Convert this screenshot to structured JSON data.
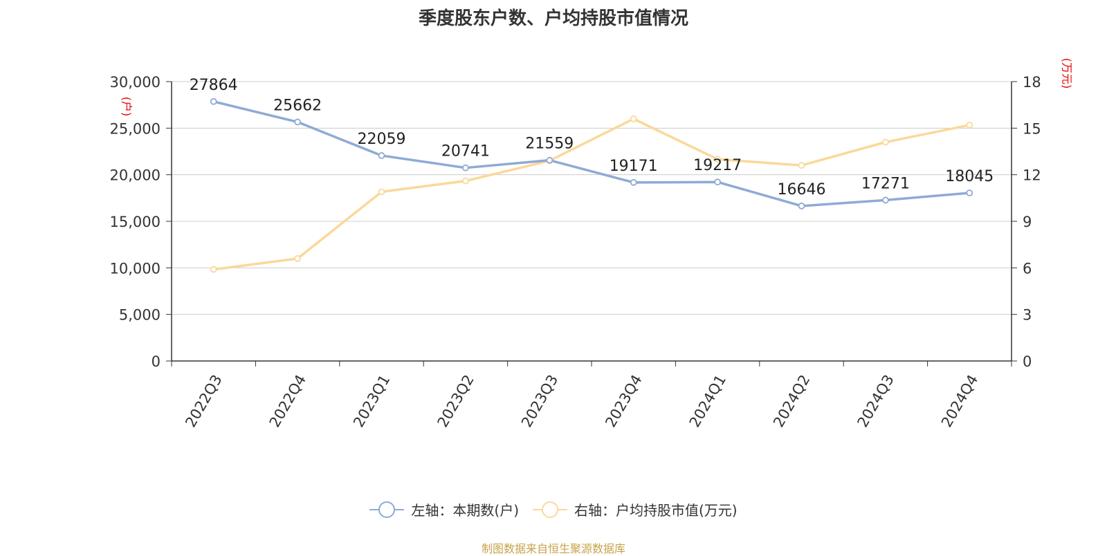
{
  "chart_data": {
    "type": "line",
    "title": "季度股东户数、户均持股市值情况",
    "categories": [
      "2022Q3",
      "2022Q4",
      "2023Q1",
      "2023Q2",
      "2023Q3",
      "2023Q4",
      "2024Q1",
      "2024Q2",
      "2024Q3",
      "2024Q4"
    ],
    "y_left": {
      "unit": "(户)",
      "range": [
        0,
        30000
      ],
      "ticks": [
        "0",
        "5,000",
        "10,000",
        "15,000",
        "20,000",
        "25,000",
        "30,000"
      ]
    },
    "y_right": {
      "unit": "(万元)",
      "range": [
        0,
        18
      ],
      "ticks": [
        "0",
        "3",
        "6",
        "9",
        "12",
        "15",
        "18"
      ]
    },
    "grid": true,
    "legend_position": "bottom",
    "series": [
      {
        "name": "左轴：本期数(户)",
        "axis": "left",
        "color": "#8eaad6",
        "values": [
          27864,
          25662,
          22059,
          20741,
          21559,
          19171,
          19217,
          16646,
          17271,
          18045
        ],
        "labels": [
          "27864",
          "25662",
          "22059",
          "20741",
          "21559",
          "19171",
          "19217",
          "16646",
          "17271",
          "18045"
        ]
      },
      {
        "name": "右轴：户均持股市值(万元)",
        "axis": "right",
        "color": "#fbd899",
        "values": [
          5.9,
          6.6,
          10.9,
          11.6,
          12.9,
          15.6,
          13.0,
          12.6,
          14.1,
          15.2
        ]
      }
    ]
  },
  "source": "制图数据来自恒生聚源数据库"
}
